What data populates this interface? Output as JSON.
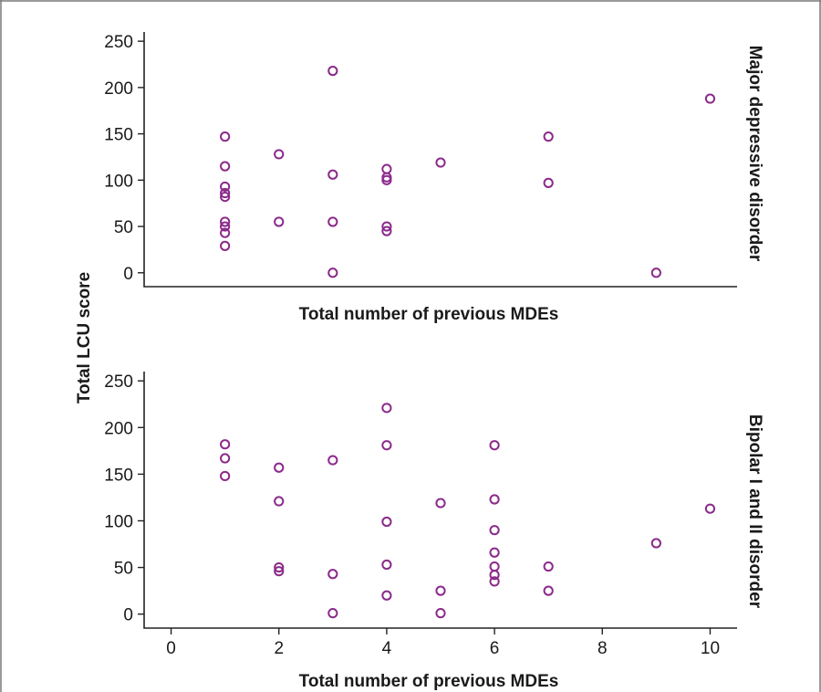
{
  "colors": {
    "point": "#8B2A8B",
    "axis": "#222222",
    "frame": "#7a7a7a"
  },
  "figure": {
    "ylabel": "Total LCU score"
  },
  "chart_data": [
    {
      "type": "scatter",
      "title": "Major depressive disorder",
      "xlabel": "Total number of previous MDEs",
      "ylabel": "Total LCU score",
      "xlim": [
        -0.5,
        10.5
      ],
      "ylim": [
        -15,
        260
      ],
      "x_ticks": [],
      "y_ticks": [
        0,
        50,
        100,
        150,
        200,
        250
      ],
      "y_tick_labels": [
        "0",
        "50",
        "100",
        "150",
        "200",
        "250"
      ],
      "grid": false,
      "series": [
        {
          "points": [
            {
              "x": 1,
              "y": 147
            },
            {
              "x": 1,
              "y": 115
            },
            {
              "x": 1,
              "y": 93
            },
            {
              "x": 1,
              "y": 86
            },
            {
              "x": 1,
              "y": 82
            },
            {
              "x": 1,
              "y": 55
            },
            {
              "x": 1,
              "y": 50
            },
            {
              "x": 1,
              "y": 43
            },
            {
              "x": 1,
              "y": 29
            },
            {
              "x": 2,
              "y": 128
            },
            {
              "x": 2,
              "y": 55
            },
            {
              "x": 3,
              "y": 218
            },
            {
              "x": 3,
              "y": 106
            },
            {
              "x": 3,
              "y": 55
            },
            {
              "x": 3,
              "y": 0
            },
            {
              "x": 4,
              "y": 112
            },
            {
              "x": 4,
              "y": 103
            },
            {
              "x": 4,
              "y": 100
            },
            {
              "x": 4,
              "y": 50
            },
            {
              "x": 4,
              "y": 45
            },
            {
              "x": 5,
              "y": 119
            },
            {
              "x": 7,
              "y": 147
            },
            {
              "x": 7,
              "y": 97
            },
            {
              "x": 9,
              "y": 0
            },
            {
              "x": 10,
              "y": 188
            }
          ]
        }
      ]
    },
    {
      "type": "scatter",
      "title": "Bipolar I and II disorder",
      "xlabel": "Total number of previous MDEs",
      "ylabel": "Total LCU score",
      "xlim": [
        -0.5,
        10.5
      ],
      "ylim": [
        -15,
        260
      ],
      "x_ticks": [
        0,
        2,
        4,
        6,
        8,
        10
      ],
      "x_tick_labels": [
        "0",
        "2",
        "4",
        "6",
        "8",
        "10"
      ],
      "y_ticks": [
        0,
        50,
        100,
        150,
        200,
        250
      ],
      "y_tick_labels": [
        "0",
        "50",
        "100",
        "150",
        "200",
        "250"
      ],
      "grid": false,
      "series": [
        {
          "points": [
            {
              "x": 1,
              "y": 182
            },
            {
              "x": 1,
              "y": 167
            },
            {
              "x": 1,
              "y": 148
            },
            {
              "x": 2,
              "y": 157
            },
            {
              "x": 2,
              "y": 121
            },
            {
              "x": 2,
              "y": 50
            },
            {
              "x": 2,
              "y": 46
            },
            {
              "x": 3,
              "y": 165
            },
            {
              "x": 3,
              "y": 43
            },
            {
              "x": 3,
              "y": 1
            },
            {
              "x": 4,
              "y": 221
            },
            {
              "x": 4,
              "y": 181
            },
            {
              "x": 4,
              "y": 99
            },
            {
              "x": 4,
              "y": 53
            },
            {
              "x": 4,
              "y": 20
            },
            {
              "x": 5,
              "y": 119
            },
            {
              "x": 5,
              "y": 25
            },
            {
              "x": 5,
              "y": 1
            },
            {
              "x": 6,
              "y": 181
            },
            {
              "x": 6,
              "y": 123
            },
            {
              "x": 6,
              "y": 90
            },
            {
              "x": 6,
              "y": 66
            },
            {
              "x": 6,
              "y": 51
            },
            {
              "x": 6,
              "y": 42
            },
            {
              "x": 6,
              "y": 35
            },
            {
              "x": 7,
              "y": 51
            },
            {
              "x": 7,
              "y": 25
            },
            {
              "x": 9,
              "y": 76
            },
            {
              "x": 10,
              "y": 113
            }
          ]
        }
      ]
    }
  ]
}
